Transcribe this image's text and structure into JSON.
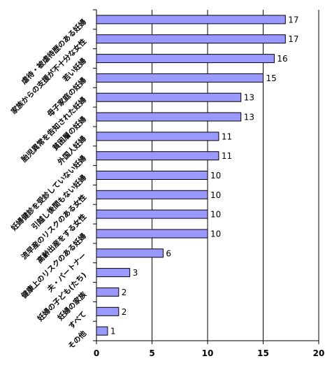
{
  "chart_data": {
    "type": "bar",
    "orientation": "horizontal",
    "categories": [
      "虐待・被虐待歴のある妊婦",
      "家族からの支援が不十分な女性",
      "若い妊婦",
      "母子家庭の妊婦",
      "胎児異常を告知された妊婦",
      "貧困層の妊婦",
      "外国人妊婦",
      "妊婦健診を受診していない妊婦",
      "引越し後間もない妊婦",
      "流早産のリスクのある女性",
      "高齢出産をする女性",
      "健康上のリスクのある妊婦",
      "夫・パートナー",
      "妊婦の子ども(たち)",
      "妊婦の家族",
      "すべて",
      "その他"
    ],
    "category_labels_visible": [
      "虐待・被虐待歴のある妊婦",
      "家族からの支援が不十分な女性",
      "若い妊婦",
      "母子家庭の妊婦",
      "胎児異常を告知された妊婦",
      "貧困層の妊婦",
      "外国人妊婦",
      "妊婦健診を受診していない妊婦",
      "引越し後間もない妊婦",
      "流早産のリスクのある女性",
      "高齢出産をする女性",
      "健康上のリスクのある妊婦",
      "夫・パートナー",
      "妊婦の子ども(たち)",
      "妊婦の家族",
      "すべて",
      "その他"
    ],
    "values": [
      17,
      17,
      16,
      15,
      13,
      13,
      11,
      11,
      10,
      10,
      10,
      10,
      6,
      3,
      2,
      2,
      1
    ],
    "xlim": [
      0,
      20
    ],
    "xticks": [
      0,
      5,
      10,
      15,
      20
    ],
    "grid": true,
    "legend": "none",
    "bar_color": "#9999ff",
    "title": "",
    "xlabel": "",
    "ylabel": ""
  }
}
